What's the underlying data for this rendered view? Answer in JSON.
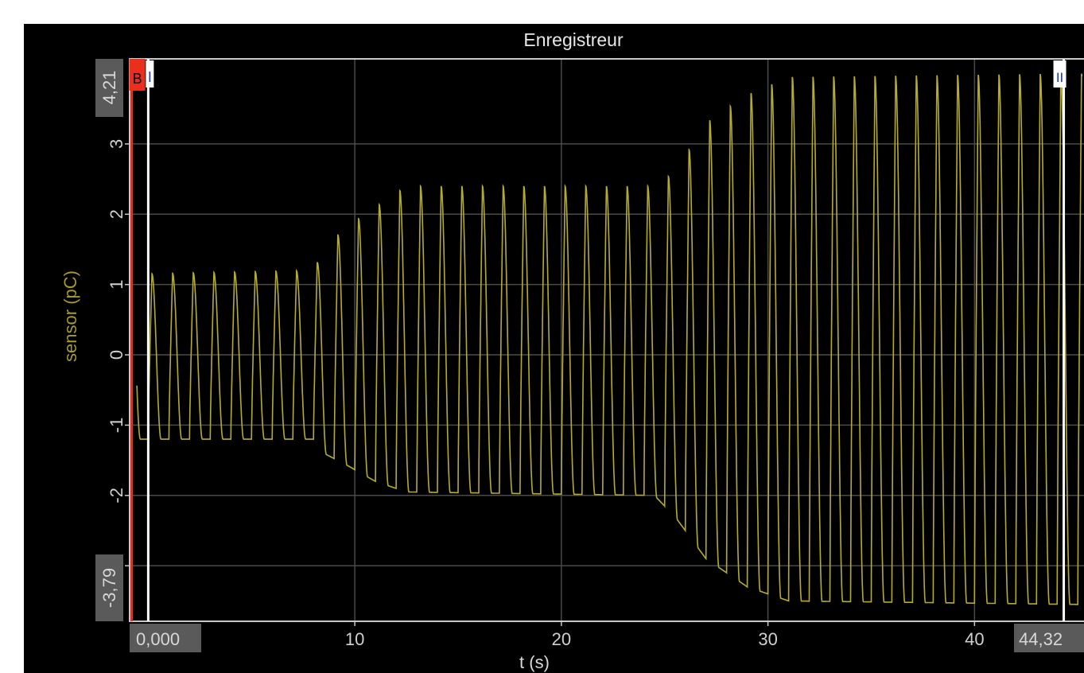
{
  "window": {
    "title": "Enregistreur"
  },
  "colors": {
    "background": "#000000",
    "signal": "#b5ac2e",
    "grid": "#4a4a4a",
    "frame": "#c9c9c9",
    "cursor_a": "#e8301c",
    "cursor_b": "#ffffff",
    "ylabel": "#a69a2c",
    "badge_bg": "#5a5a5a"
  },
  "cursors": {
    "a": {
      "marker": "B",
      "t": -0.8
    },
    "b": {
      "marker": "I",
      "t": 0.0
    },
    "c": {
      "marker": "II",
      "t": 44.32
    }
  },
  "readouts": {
    "y_max": "4,21",
    "y_min": "-3,79",
    "x_start": "0,000",
    "x_end": "44,32"
  },
  "chart_data": {
    "type": "line",
    "title": "Enregistreur",
    "xlabel": "t (s)",
    "ylabel": "sensor (pC)",
    "xlim": [
      -0.9,
      45.3
    ],
    "ylim": [
      -3.79,
      4.21
    ],
    "xticks": [
      10,
      20,
      30,
      40
    ],
    "xtick_labels": [
      "10",
      "20",
      "30",
      "40"
    ],
    "yticks": [
      -3,
      -2,
      -1,
      0,
      1,
      2,
      3
    ],
    "ytick_labels": [
      "",
      "-2",
      "-1",
      "0",
      "1",
      "2",
      "3"
    ],
    "grid": true,
    "series": [
      {
        "period_s": 1.0,
        "envelope": [
          {
            "t": -0.5,
            "max": 1.15,
            "min": -1.2
          },
          {
            "t": 8.0,
            "max": 1.2,
            "min": -1.2
          },
          {
            "t": 8.5,
            "max": 1.5,
            "min": -1.4
          },
          {
            "t": 9.5,
            "max": 1.8,
            "min": -1.55
          },
          {
            "t": 11.0,
            "max": 2.1,
            "min": -1.8
          },
          {
            "t": 12.5,
            "max": 2.4,
            "min": -1.95
          },
          {
            "t": 24.5,
            "max": 2.4,
            "min": -2.0
          },
          {
            "t": 25.5,
            "max": 2.6,
            "min": -2.3
          },
          {
            "t": 27.0,
            "max": 3.3,
            "min": -2.9
          },
          {
            "t": 29.0,
            "max": 3.7,
            "min": -3.3
          },
          {
            "t": 31.0,
            "max": 3.95,
            "min": -3.5
          },
          {
            "t": 45.0,
            "max": 4.0,
            "min": -3.55
          }
        ]
      }
    ]
  }
}
